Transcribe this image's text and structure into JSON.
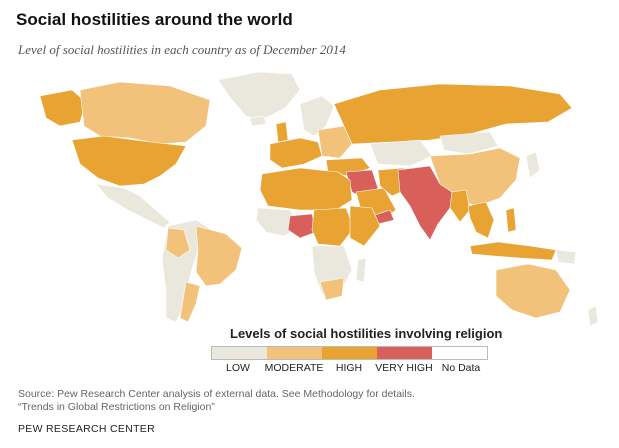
{
  "title": "Social hostilities around the world",
  "subtitle": "Level of social hostilities in each country as of December 2014",
  "legend": {
    "title": "Levels of social hostilities involving religion",
    "items": [
      {
        "label": "LOW",
        "color": "#eae8dc"
      },
      {
        "label": "MODERATE",
        "color": "#f2c27a"
      },
      {
        "label": "HIGH",
        "color": "#e8a332"
      },
      {
        "label": "VERY HIGH",
        "color": "#d9605a"
      },
      {
        "label": "No Data",
        "color": "#ffffff"
      }
    ]
  },
  "source_line1": "Source: Pew Research Center analysis of external data. See Methodology for details.",
  "source_line2": "“Trends in Global Restrictions on Religion”",
  "organization": "PEW RESEARCH CENTER",
  "colors": {
    "low": "#eae8dc",
    "moderate": "#f2c27a",
    "high": "#e8a332",
    "very_high": "#d9605a",
    "border": "#ffffff"
  }
}
